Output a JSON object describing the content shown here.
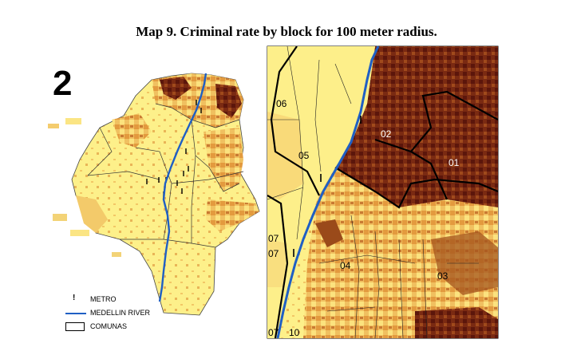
{
  "title": "Map 9. Criminal rate by block for 100 meter radius.",
  "map_number": "2",
  "legend": [
    {
      "symbol": "metro-icon",
      "label": "METRO"
    },
    {
      "symbol": "river-line",
      "label": "MEDELLIN RIVER",
      "color": "#1f5fc4"
    },
    {
      "symbol": "comuna-box",
      "label": "COMUNAS"
    }
  ],
  "comuna_labels": [
    "06",
    "02",
    "05",
    "01",
    "07",
    "07",
    "04",
    "03",
    "07",
    "10"
  ],
  "colors": {
    "light": "#fdf08a",
    "mid": "#e8b050",
    "dark": "#a85a20",
    "darkest": "#6b1e0e",
    "river": "#1f5fc4"
  }
}
